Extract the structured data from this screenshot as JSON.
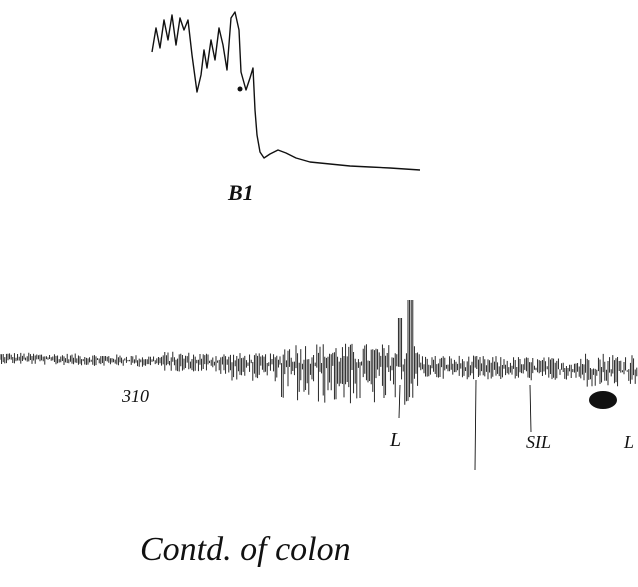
{
  "top_trace": {
    "label": "B1"
  },
  "bottom_trace": {
    "labels": [
      "310",
      "L",
      "SIL",
      "L"
    ]
  },
  "caption": "Contd. of colon"
}
